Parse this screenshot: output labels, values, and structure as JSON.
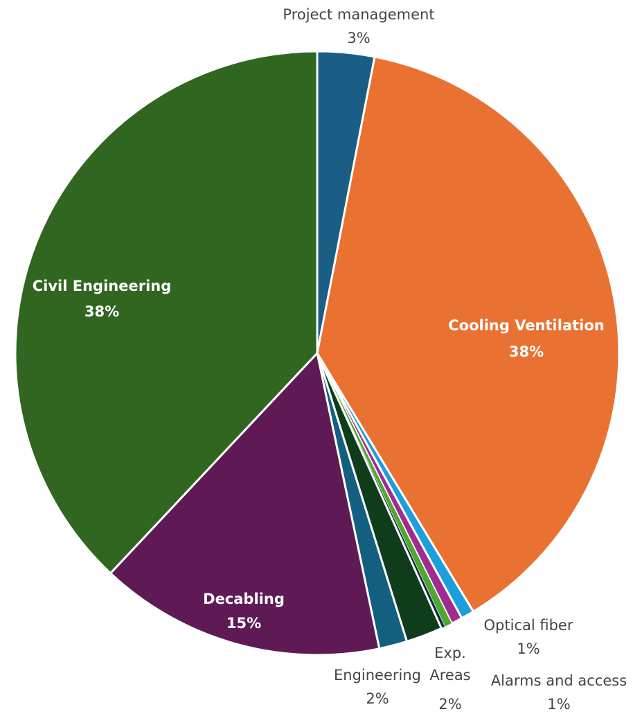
{
  "chart_data": {
    "type": "pie",
    "categories": [
      "Project management",
      "Cooling Ventilation",
      "Optical fiber",
      "Alarms and access",
      null,
      null,
      "Exp. Areas",
      "Engineering",
      "Decabling",
      "Civil Engineering"
    ],
    "values": [
      3.05,
      38.3,
      0.7,
      0.6,
      0.4,
      0.2,
      1.95,
      1.5,
      15.3,
      38.0
    ],
    "value_labels": [
      "3%",
      "38%",
      "1%",
      "1%",
      null,
      null,
      "2%",
      "2%",
      "15%",
      "38%"
    ],
    "colors": [
      "#1b5e85",
      "#e97132",
      "#1d9fdb",
      "#a02b93",
      "#4ea72e",
      "#0e2841",
      "#0f3d1b",
      "#135f80",
      "#5f1a56",
      "#306620"
    ]
  }
}
